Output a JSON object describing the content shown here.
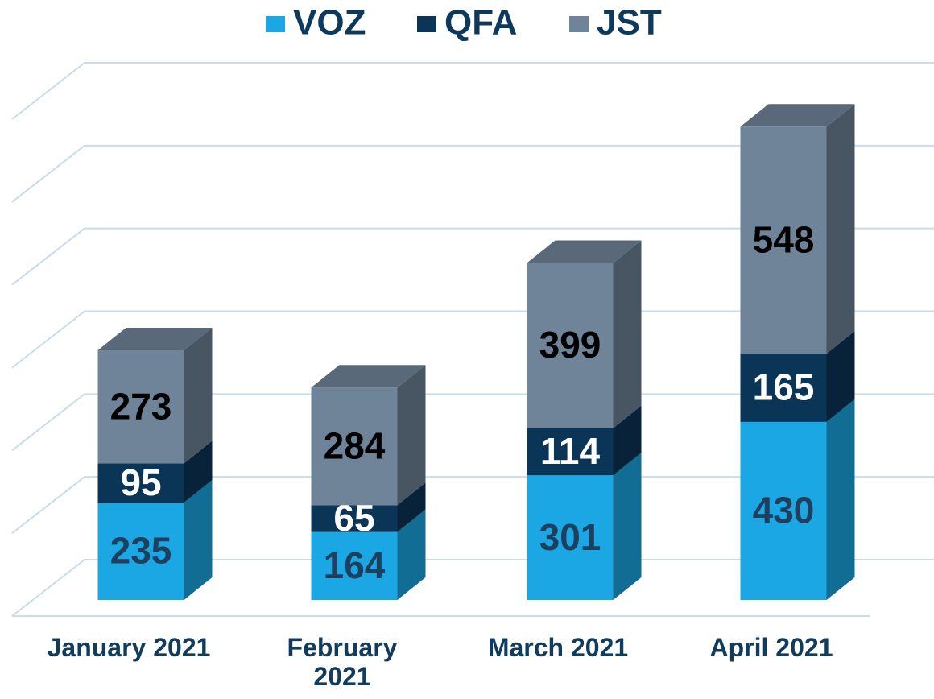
{
  "chart_data": {
    "type": "bar",
    "stacked": true,
    "categories": [
      "January 2021",
      "February 2021",
      "March 2021",
      "April 2021"
    ],
    "series": [
      {
        "name": "VOZ",
        "color": "#1aa7e3",
        "values": [
          235,
          164,
          301,
          430
        ]
      },
      {
        "name": "QFA",
        "color": "#0b3557",
        "values": [
          95,
          65,
          114,
          165
        ]
      },
      {
        "name": "JST",
        "color": "#6f8399",
        "values": [
          273,
          284,
          399,
          548
        ]
      }
    ],
    "ylim": [
      0,
      1200
    ],
    "yticks": [
      0,
      200,
      400,
      600,
      800,
      1000,
      1200
    ],
    "grid": true,
    "legend": "top"
  }
}
